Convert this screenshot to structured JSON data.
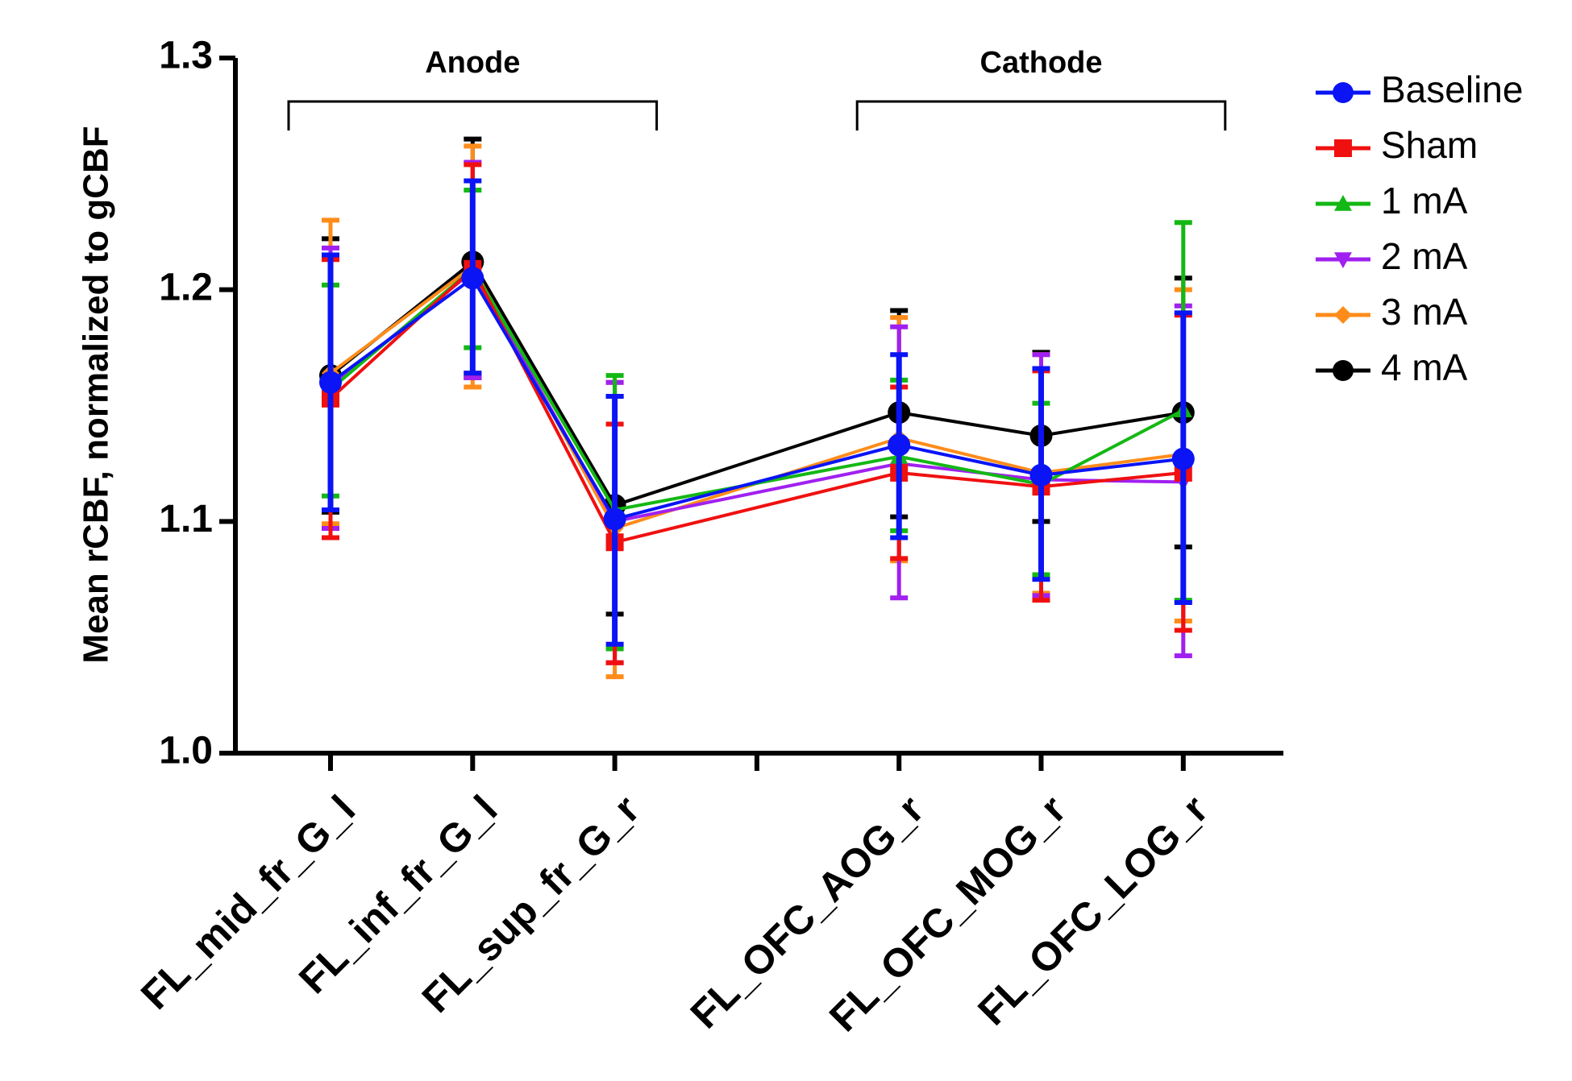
{
  "chart_data": {
    "type": "line",
    "title": "",
    "xlabel": "",
    "ylabel": "Mean rCBF, normalized to gCBF",
    "ylim": [
      1.0,
      1.3
    ],
    "yticks": [
      "1.0",
      "1.1",
      "1.2",
      "1.3"
    ],
    "categories": [
      "FL_mid_fr_G_l",
      "FL_inf_fr_G_l",
      "FL_sup_fr_G_r",
      "FL_OFC_AOG_r",
      "FL_OFC_MOG_r",
      "FL_OFC_LOG_r"
    ],
    "category_slots": [
      0,
      1,
      2,
      4,
      5,
      6
    ],
    "groups": [
      {
        "label": "Anode",
        "categories": [
          0,
          1,
          2
        ]
      },
      {
        "label": "Cathode",
        "categories": [
          3,
          4,
          5
        ]
      }
    ],
    "legend_position": "top-right",
    "series": [
      {
        "name": "4 mA",
        "color": "#000000",
        "marker": "circle",
        "values": [
          1.163,
          1.212,
          1.107,
          1.147,
          1.137,
          1.147
        ],
        "err_low": [
          1.104,
          1.162,
          1.06,
          1.102,
          1.1,
          1.089
        ],
        "err_high": [
          1.222,
          1.265,
          1.154,
          1.191,
          1.173,
          1.205
        ]
      },
      {
        "name": "3 mA",
        "color": "#FF8C1A",
        "marker": "diamond",
        "values": [
          1.164,
          1.21,
          1.097,
          1.136,
          1.121,
          1.129
        ],
        "err_low": [
          1.099,
          1.158,
          1.033,
          1.083,
          1.069,
          1.057
        ],
        "err_high": [
          1.23,
          1.262,
          1.16,
          1.188,
          1.172,
          1.2
        ]
      },
      {
        "name": "2 mA",
        "color": "#A020F0",
        "marker": "triangle-down",
        "values": [
          1.158,
          1.208,
          1.1,
          1.125,
          1.118,
          1.117
        ],
        "err_low": [
          1.097,
          1.162,
          1.039,
          1.067,
          1.068,
          1.042
        ],
        "err_high": [
          1.218,
          1.255,
          1.16,
          1.184,
          1.172,
          1.193
        ]
      },
      {
        "name": "1 mA",
        "color": "#14B814",
        "marker": "triangle-up",
        "values": [
          1.157,
          1.209,
          1.105,
          1.128,
          1.116,
          1.148
        ],
        "err_low": [
          1.111,
          1.175,
          1.045,
          1.096,
          1.077,
          1.066
        ],
        "err_high": [
          1.202,
          1.243,
          1.163,
          1.161,
          1.151,
          1.229
        ]
      },
      {
        "name": "Sham",
        "color": "#F01010",
        "marker": "square",
        "values": [
          1.153,
          1.209,
          1.091,
          1.121,
          1.115,
          1.121
        ],
        "err_low": [
          1.093,
          1.164,
          1.039,
          1.084,
          1.066,
          1.053
        ],
        "err_high": [
          1.213,
          1.254,
          1.142,
          1.158,
          1.165,
          1.189
        ]
      },
      {
        "name": "Baseline",
        "color": "#0A14F5",
        "marker": "circle",
        "values": [
          1.16,
          1.205,
          1.101,
          1.133,
          1.12,
          1.127
        ],
        "err_low": [
          1.105,
          1.164,
          1.047,
          1.093,
          1.075,
          1.065
        ],
        "err_high": [
          1.215,
          1.247,
          1.154,
          1.172,
          1.166,
          1.19
        ]
      }
    ],
    "legend_order": [
      "Baseline",
      "Sham",
      "1 mA",
      "2 mA",
      "3 mA",
      "4 mA"
    ]
  }
}
